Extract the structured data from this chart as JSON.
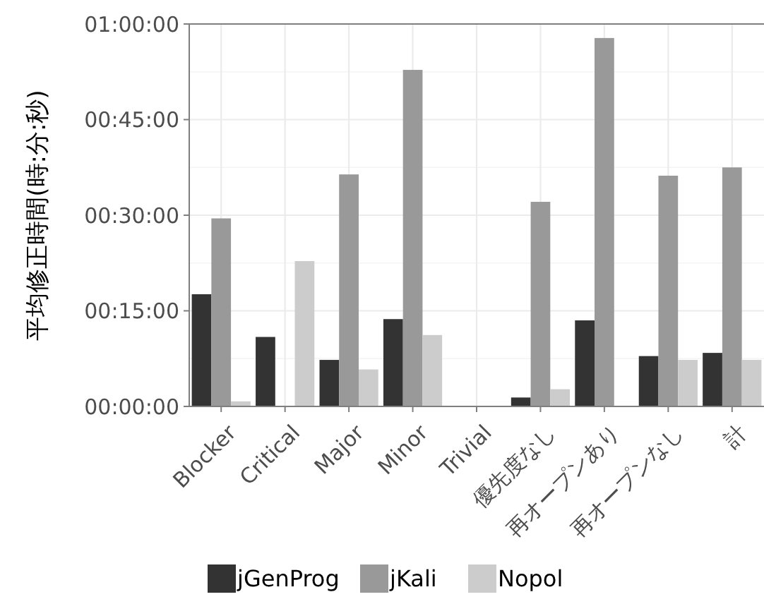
{
  "chart_data": {
    "type": "bar",
    "ylabel": "平均修正時間(時:分:秒)",
    "categories": [
      "Blocker",
      "Critical",
      "Major",
      "Minor",
      "Trivial",
      "優先度なし",
      "再オープンあり",
      "再オープンなし",
      "計"
    ],
    "series": [
      {
        "name": "jGenProg",
        "color": "#333333",
        "values": [
          17.6,
          10.9,
          7.3,
          13.7,
          0,
          1.4,
          13.5,
          7.9,
          8.4
        ]
      },
      {
        "name": "jKali",
        "color": "#999999",
        "values": [
          29.5,
          0,
          36.4,
          52.8,
          0,
          32.1,
          57.8,
          36.2,
          37.5
        ]
      },
      {
        "name": "Nopol",
        "color": "#cccccc",
        "values": [
          0.8,
          22.8,
          5.8,
          11.2,
          0,
          2.7,
          0,
          7.3,
          7.3
        ]
      }
    ],
    "ylim": [
      0,
      60
    ],
    "yticks": [
      {
        "value": 0,
        "label": "00:00:00"
      },
      {
        "value": 15,
        "label": "00:15:00"
      },
      {
        "value": 30,
        "label": "00:30:00"
      },
      {
        "value": 45,
        "label": "00:45:00"
      },
      {
        "value": 60,
        "label": "01:00:00"
      }
    ],
    "grid": true,
    "legend": "bottom"
  }
}
